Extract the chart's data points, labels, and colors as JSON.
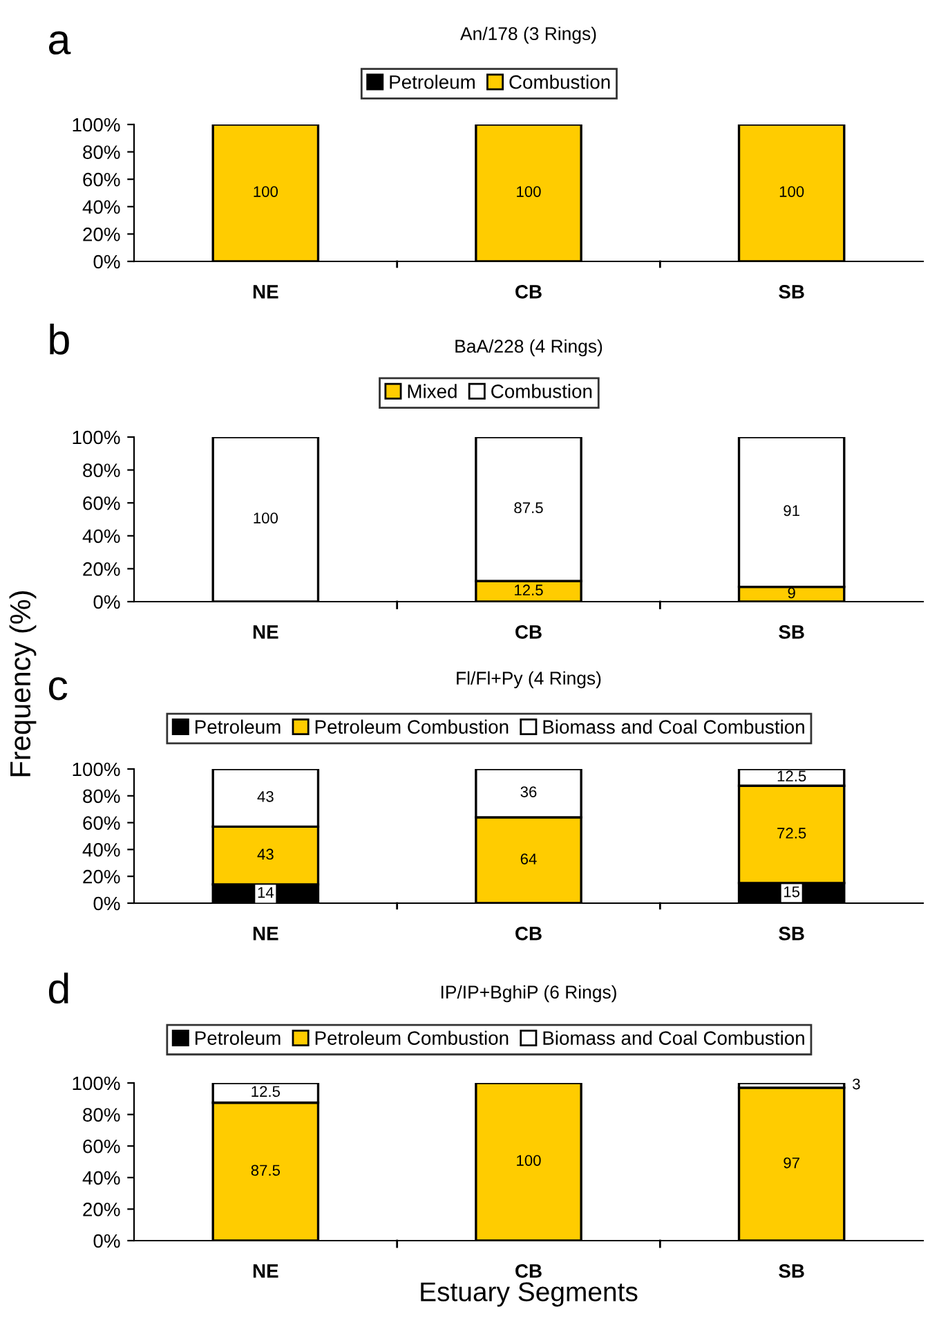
{
  "chart_data": [
    {
      "type": "bar",
      "stacked": true,
      "title": "An/178 (3 Rings)",
      "annotations": [
        "a"
      ],
      "legend": "top",
      "categories": [
        "NE",
        "CB",
        "SB"
      ],
      "ylim": [
        0,
        100
      ],
      "yticks": [
        {
          "value": 0,
          "label": "0%"
        },
        {
          "value": 20,
          "label": "20%"
        },
        {
          "value": 40,
          "label": "40%"
        },
        {
          "value": 60,
          "label": "60%"
        },
        {
          "value": 80,
          "label": "80%"
        },
        {
          "value": 100,
          "label": "100%"
        }
      ],
      "series": [
        {
          "name": "Petroleum",
          "color": "#000000",
          "values": [
            0,
            0,
            0
          ]
        },
        {
          "name": "Combustion",
          "color": "#ffcc00",
          "values": [
            100,
            100,
            100
          ],
          "value_labels": [
            "100",
            "100",
            "100"
          ]
        }
      ]
    },
    {
      "type": "bar",
      "stacked": true,
      "title": "BaA/228 (4 Rings)",
      "annotations": [
        "b"
      ],
      "legend": "top",
      "ylabel": "Frequency (%)",
      "categories": [
        "NE",
        "CB",
        "SB"
      ],
      "ylim": [
        0,
        100
      ],
      "yticks": [
        {
          "value": 0,
          "label": "0%"
        },
        {
          "value": 20,
          "label": "20%"
        },
        {
          "value": 40,
          "label": "40%"
        },
        {
          "value": 60,
          "label": "60%"
        },
        {
          "value": 80,
          "label": "80%"
        },
        {
          "value": 100,
          "label": "100%"
        }
      ],
      "series": [
        {
          "name": "Mixed",
          "color": "#ffcc00",
          "values": [
            0,
            12.5,
            9
          ],
          "value_labels": [
            null,
            "12.5",
            "9"
          ]
        },
        {
          "name": "Combustion",
          "color": "#ffffff",
          "values": [
            100,
            87.5,
            91
          ],
          "value_labels": [
            "100",
            "87.5",
            "91"
          ]
        }
      ]
    },
    {
      "type": "bar",
      "stacked": true,
      "title": "Fl/Fl+Py (4 Rings)",
      "annotations": [
        "c"
      ],
      "legend": "top",
      "categories": [
        "NE",
        "CB",
        "SB"
      ],
      "ylim": [
        0,
        100
      ],
      "yticks": [
        {
          "value": 0,
          "label": "0%"
        },
        {
          "value": 20,
          "label": "20%"
        },
        {
          "value": 40,
          "label": "40%"
        },
        {
          "value": 60,
          "label": "60%"
        },
        {
          "value": 80,
          "label": "80%"
        },
        {
          "value": 100,
          "label": "100%"
        }
      ],
      "series": [
        {
          "name": "Petroleum",
          "color": "#000000",
          "values": [
            14,
            0,
            15
          ],
          "value_labels": [
            "14",
            null,
            "15"
          ]
        },
        {
          "name": "Petroleum Combustion",
          "color": "#ffcc00",
          "values": [
            43,
            64,
            72.5
          ],
          "value_labels": [
            "43",
            "64",
            "72.5"
          ]
        },
        {
          "name": "Biomass and Coal Combustion",
          "color": "#ffffff",
          "values": [
            43,
            36,
            12.5
          ],
          "value_labels": [
            "43",
            "36",
            "12.5"
          ]
        }
      ]
    },
    {
      "type": "bar",
      "stacked": true,
      "title": "IP/IP+BghiP (6 Rings)",
      "annotations": [
        "d"
      ],
      "legend": "top",
      "xlabel": "Estuary Segments",
      "categories": [
        "NE",
        "CB",
        "SB"
      ],
      "ylim": [
        0,
        100
      ],
      "yticks": [
        {
          "value": 0,
          "label": "0%"
        },
        {
          "value": 20,
          "label": "20%"
        },
        {
          "value": 40,
          "label": "40%"
        },
        {
          "value": 60,
          "label": "60%"
        },
        {
          "value": 80,
          "label": "80%"
        },
        {
          "value": 100,
          "label": "100%"
        }
      ],
      "series": [
        {
          "name": "Petroleum",
          "color": "#000000",
          "values": [
            0,
            0,
            0
          ]
        },
        {
          "name": "Petroleum Combustion",
          "color": "#ffcc00",
          "values": [
            87.5,
            100,
            97
          ],
          "value_labels": [
            "87.5",
            "100",
            "97"
          ]
        },
        {
          "name": "Biomass and Coal Combustion",
          "color": "#ffffff",
          "values": [
            12.5,
            0,
            3
          ],
          "value_labels": [
            "12.5",
            null,
            "3"
          ]
        }
      ]
    }
  ]
}
